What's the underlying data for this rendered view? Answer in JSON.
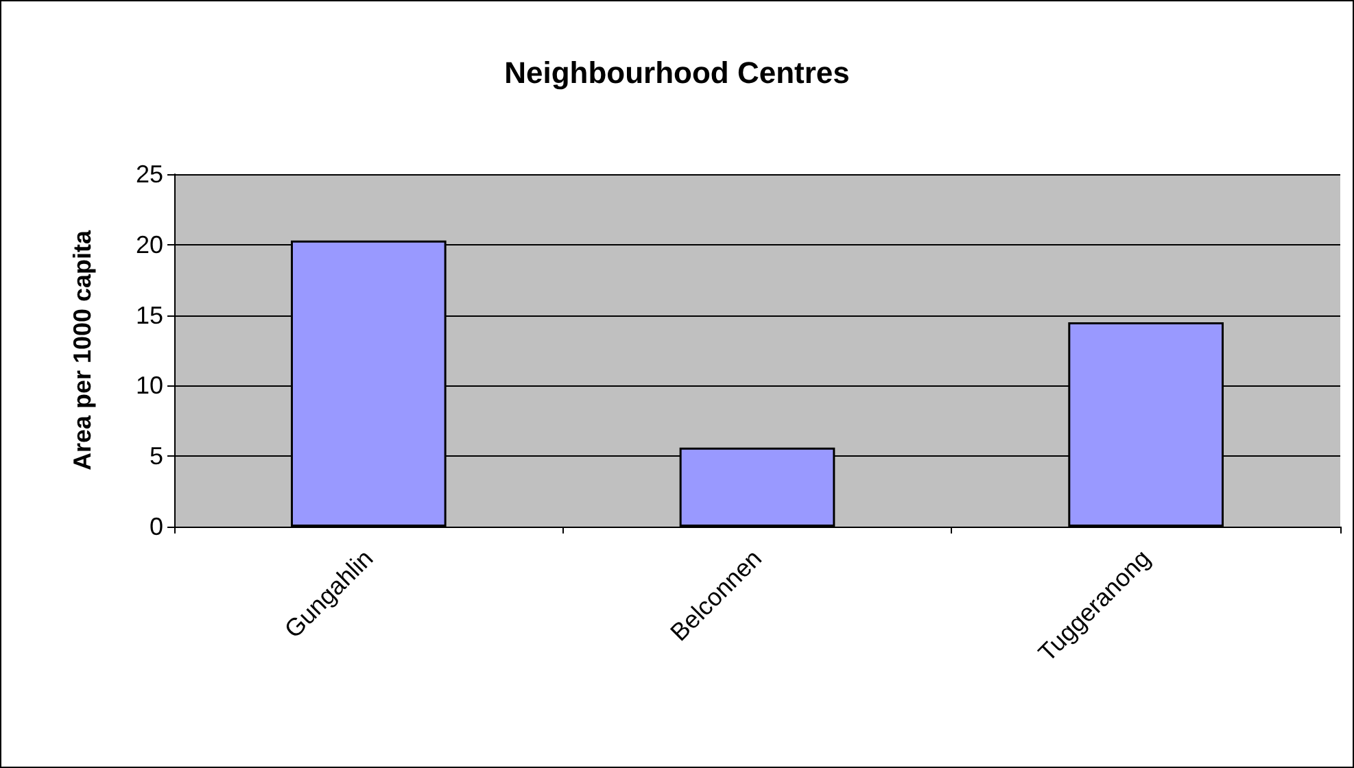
{
  "chart_data": {
    "type": "bar",
    "title": "Neighbourhood Centres",
    "ylabel": "Area per 1000 capita",
    "categories": [
      "Gungahlin",
      "Belconnen",
      "Tuggeranong"
    ],
    "values": [
      20.3,
      5.6,
      14.5
    ],
    "color": "#9999ff",
    "ylim": [
      0,
      25
    ],
    "yticks": [
      0,
      5,
      10,
      15,
      20,
      25
    ],
    "grid": "y"
  }
}
